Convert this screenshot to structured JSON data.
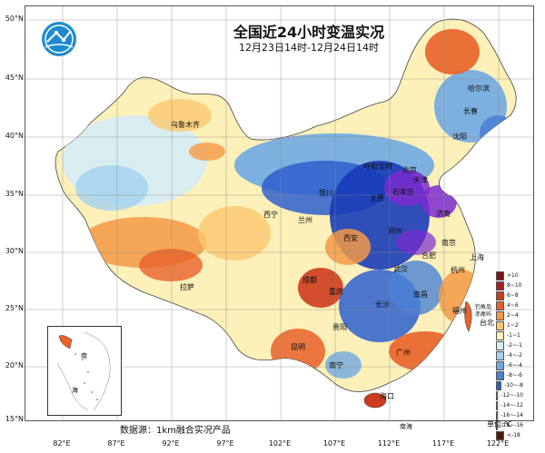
{
  "header": {
    "title": "全国近24小时变温实况",
    "subtitle": "12月23日14时-12月24日14时"
  },
  "axes": {
    "lat_labels": [
      "50°N",
      "45°N",
      "40°N",
      "35°N",
      "30°N",
      "25°N",
      "20°N",
      "15°N"
    ],
    "lon_labels": [
      "82°E",
      "87°E",
      "92°E",
      "97°E",
      "102°E",
      "107°E",
      "112°E",
      "117°E",
      "122°E"
    ]
  },
  "cities": [
    {
      "name": "乌鲁木齐"
    },
    {
      "name": "哈尔滨"
    },
    {
      "name": "长春"
    },
    {
      "name": "沈阳"
    },
    {
      "name": "北京"
    },
    {
      "name": "天津"
    },
    {
      "name": "呼和浩特"
    },
    {
      "name": "石家庄"
    },
    {
      "name": "太原"
    },
    {
      "name": "银川"
    },
    {
      "name": "西宁"
    },
    {
      "name": "兰州"
    },
    {
      "name": "郑州"
    },
    {
      "name": "济南"
    },
    {
      "name": "西安"
    },
    {
      "name": "南京"
    },
    {
      "name": "合肥"
    },
    {
      "name": "上海"
    },
    {
      "name": "杭州"
    },
    {
      "name": "武汉"
    },
    {
      "name": "成都"
    },
    {
      "name": "重庆"
    },
    {
      "name": "长沙"
    },
    {
      "name": "南昌"
    },
    {
      "name": "福州"
    },
    {
      "name": "拉萨"
    },
    {
      "name": "贵阳"
    },
    {
      "name": "昆明"
    },
    {
      "name": "南宁"
    },
    {
      "name": "广州"
    },
    {
      "name": "台北"
    },
    {
      "name": "海口"
    },
    {
      "name": "钓鱼岛"
    },
    {
      "name": "赤尾屿"
    },
    {
      "name": "南海"
    }
  ],
  "inset": {
    "labels": [
      "南",
      "海"
    ]
  },
  "legend": {
    "unit": "单位:℃",
    "items": [
      {
        "label": ">10",
        "color": "#7a1515"
      },
      {
        "label": "8~10",
        "color": "#a52020"
      },
      {
        "label": "6~8",
        "color": "#cc3b1e"
      },
      {
        "label": "4~6",
        "color": "#e8622a"
      },
      {
        "label": "2~4",
        "color": "#f39a45"
      },
      {
        "label": "1~2",
        "color": "#fbc870"
      },
      {
        "label": "-1~1",
        "color": "#fdf0b8"
      },
      {
        "label": "-2~-1",
        "color": "#d5ecf6"
      },
      {
        "label": "-4~-2",
        "color": "#a3d2ef"
      },
      {
        "label": "-6~-4",
        "color": "#6fa9e2"
      },
      {
        "label": "-8~-6",
        "color": "#4a82d6"
      },
      {
        "label": "-10~-8",
        "color": "#2d5fcf"
      },
      {
        "label": "-12~-10",
        "color": "#1a3cb8"
      },
      {
        "label": "-14~-12",
        "color": "#7b2ad0"
      },
      {
        "label": "-16~-14",
        "color": "#5a1a8a"
      },
      {
        "label": "-18~-16",
        "color": "#3c0f5f"
      },
      {
        "label": "<-18",
        "color": "#4a1a0a"
      }
    ]
  },
  "footer": {
    "source": "数据源：1km融合实况产品"
  }
}
